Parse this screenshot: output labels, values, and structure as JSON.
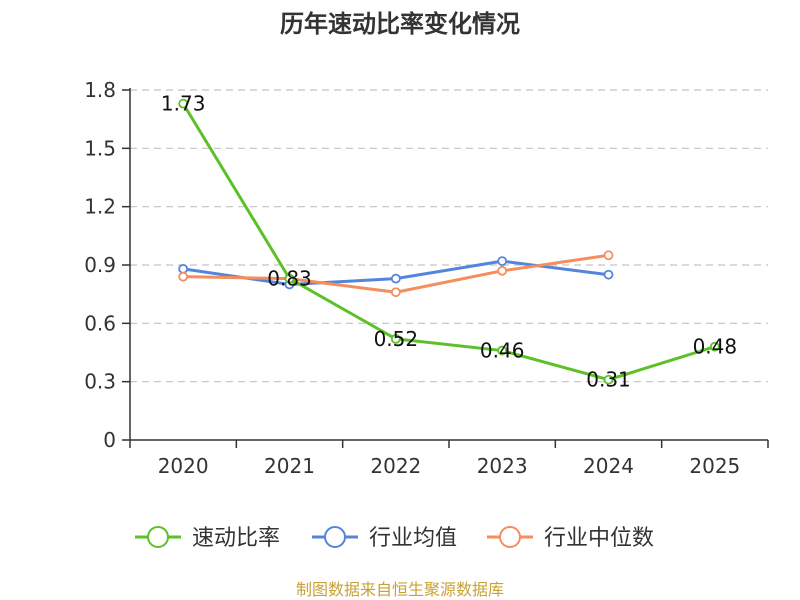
{
  "chart_data": {
    "type": "line",
    "title": "历年速动比率变化情况",
    "categories": [
      "2020",
      "2021",
      "2022",
      "2023",
      "2024",
      "2025"
    ],
    "ylim": [
      0,
      1.8
    ],
    "yticks": [
      "0",
      "0.3",
      "0.6",
      "0.9",
      "1.2",
      "1.5",
      "1.8"
    ],
    "grid": true,
    "legend_position": "bottom",
    "series": [
      {
        "name": "速动比率",
        "color": "#5cc128",
        "values": [
          1.73,
          0.83,
          0.52,
          0.46,
          0.31,
          0.48
        ],
        "labels": [
          "1.73",
          "0.83",
          "0.52",
          "0.46",
          "0.31",
          "0.48"
        ],
        "show_labels": true
      },
      {
        "name": "行业均值",
        "color": "#5584db",
        "values": [
          0.88,
          0.8,
          0.83,
          0.92,
          0.85,
          null
        ],
        "show_labels": false
      },
      {
        "name": "行业中位数",
        "color": "#f58d5c",
        "values": [
          0.84,
          0.83,
          0.76,
          0.87,
          0.95,
          null
        ],
        "show_labels": false
      }
    ]
  },
  "source": "制图数据来自恒生聚源数据库"
}
